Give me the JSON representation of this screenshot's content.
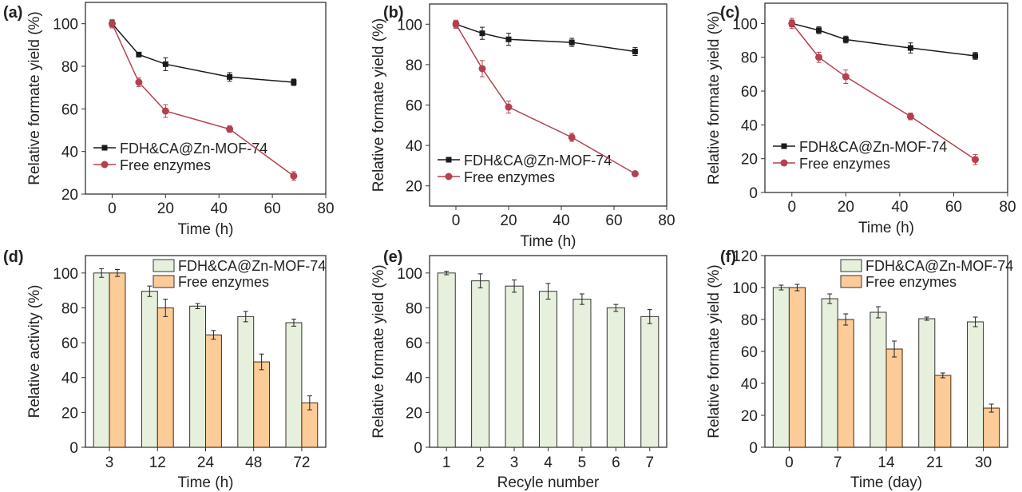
{
  "colors": {
    "black_series": "#1a1a1a",
    "red_series": "#b5404f",
    "green_bar": "#e6f0dc",
    "orange_bar": "#fbcb98"
  },
  "chart_data": [
    {
      "panel": "(a)",
      "type": "line",
      "xlabel": "Time (h)",
      "ylabel": "Relative formate yield (%)",
      "xlim": [
        -10,
        80
      ],
      "ylim": [
        20,
        110
      ],
      "xticks": [
        0,
        20,
        40,
        60,
        80
      ],
      "yticks": [
        20,
        40,
        60,
        80,
        100
      ],
      "legend": "bottom-left",
      "x": [
        0,
        10,
        20,
        44,
        68
      ],
      "series": [
        {
          "name": "FDH&CA@Zn-MOF-74",
          "marker": "square",
          "values": [
            100,
            85.5,
            81,
            75,
            72.5
          ],
          "err": [
            1.5,
            1,
            3,
            2,
            1.5
          ]
        },
        {
          "name": "Free enzymes",
          "marker": "circle",
          "values": [
            100,
            72.5,
            59,
            50.5,
            28.5
          ],
          "err": [
            2,
            2,
            3,
            1.5,
            2
          ]
        }
      ]
    },
    {
      "panel": "(b)",
      "type": "line",
      "xlabel": "Time (h)",
      "ylabel": "Relative formate yield (%)",
      "xlim": [
        -10,
        80
      ],
      "ylim": [
        10,
        110
      ],
      "xticks": [
        0,
        20,
        40,
        60,
        80
      ],
      "yticks": [
        20,
        40,
        60,
        80,
        100
      ],
      "legend": "bottom-left",
      "x": [
        0,
        10,
        20,
        44,
        68
      ],
      "series": [
        {
          "name": "FDH&CA@Zn-MOF-74",
          "marker": "square",
          "values": [
            100,
            95.5,
            92.5,
            91,
            86.5
          ],
          "err": [
            1.5,
            3,
            3,
            2,
            2
          ]
        },
        {
          "name": "Free enzymes",
          "marker": "circle",
          "values": [
            100,
            78,
            59,
            44,
            26
          ],
          "err": [
            2,
            4,
            3,
            2,
            1
          ]
        }
      ]
    },
    {
      "panel": "(c)",
      "type": "line",
      "xlabel": "Time (h)",
      "ylabel": "Relative formate yield (%)",
      "xlim": [
        -10,
        80
      ],
      "ylim": [
        0,
        112
      ],
      "xticks": [
        0,
        20,
        40,
        60,
        80
      ],
      "yticks": [
        0,
        20,
        40,
        60,
        80,
        100
      ],
      "legend": "bottom-left",
      "x": [
        0,
        10,
        20,
        44,
        68
      ],
      "series": [
        {
          "name": "FDH&CA@Zn-MOF-74",
          "marker": "square",
          "values": [
            100,
            96,
            90.5,
            85.5,
            80.8
          ],
          "err": [
            2,
            2,
            2,
            3,
            2
          ]
        },
        {
          "name": "Free enzymes",
          "marker": "circle",
          "values": [
            100,
            80,
            68.5,
            45,
            19.5
          ],
          "err": [
            3,
            3,
            4,
            2,
            3
          ]
        }
      ]
    },
    {
      "panel": "(d)",
      "type": "bar",
      "xlabel": "Time (h)",
      "ylabel": "Relative activity (%)",
      "ylim": [
        0,
        110
      ],
      "yticks": [
        0,
        20,
        40,
        60,
        80,
        100
      ],
      "legend": "top-right",
      "categories": [
        "3",
        "12",
        "24",
        "48",
        "72"
      ],
      "series": [
        {
          "name": "FDH&CA@Zn-MOF-74",
          "values": [
            100,
            89.5,
            81,
            75,
            71.5
          ],
          "err": [
            2.5,
            3,
            1.5,
            3,
            2
          ]
        },
        {
          "name": "Free enzymes",
          "values": [
            100,
            80,
            64.5,
            49,
            25.5
          ],
          "err": [
            2,
            5,
            2.5,
            4.5,
            4
          ]
        }
      ]
    },
    {
      "panel": "(e)",
      "type": "bar",
      "xlabel": "Recyle number",
      "ylabel": "Relative formate yield (%)",
      "ylim": [
        0,
        110
      ],
      "yticks": [
        0,
        20,
        40,
        60,
        80,
        100
      ],
      "categories": [
        "1",
        "2",
        "3",
        "4",
        "5",
        "6",
        "7"
      ],
      "series": [
        {
          "name": "FDH&CA@Zn-MOF-74",
          "values": [
            100,
            95.5,
            92.5,
            89.5,
            85,
            80,
            75
          ],
          "err": [
            1,
            4,
            3.5,
            4.5,
            3,
            2,
            4
          ]
        }
      ]
    },
    {
      "panel": "(f)",
      "type": "bar",
      "xlabel": "Time (day)",
      "ylabel": "Relative formate yield (%)",
      "ylim": [
        0,
        120
      ],
      "yticks": [
        0,
        20,
        40,
        60,
        80,
        100,
        120
      ],
      "legend": "top-right",
      "categories": [
        "0",
        "7",
        "14",
        "21",
        "30"
      ],
      "series": [
        {
          "name": "FDH&CA@Zn-MOF-74",
          "values": [
            100,
            93,
            84.5,
            80.5,
            78.5
          ],
          "err": [
            1.5,
            3,
            3.5,
            1,
            3
          ]
        },
        {
          "name": "Free enzymes",
          "values": [
            100,
            80,
            61.5,
            45,
            24.5
          ],
          "err": [
            2,
            3.5,
            5,
            1.5,
            2.5
          ]
        }
      ]
    }
  ]
}
